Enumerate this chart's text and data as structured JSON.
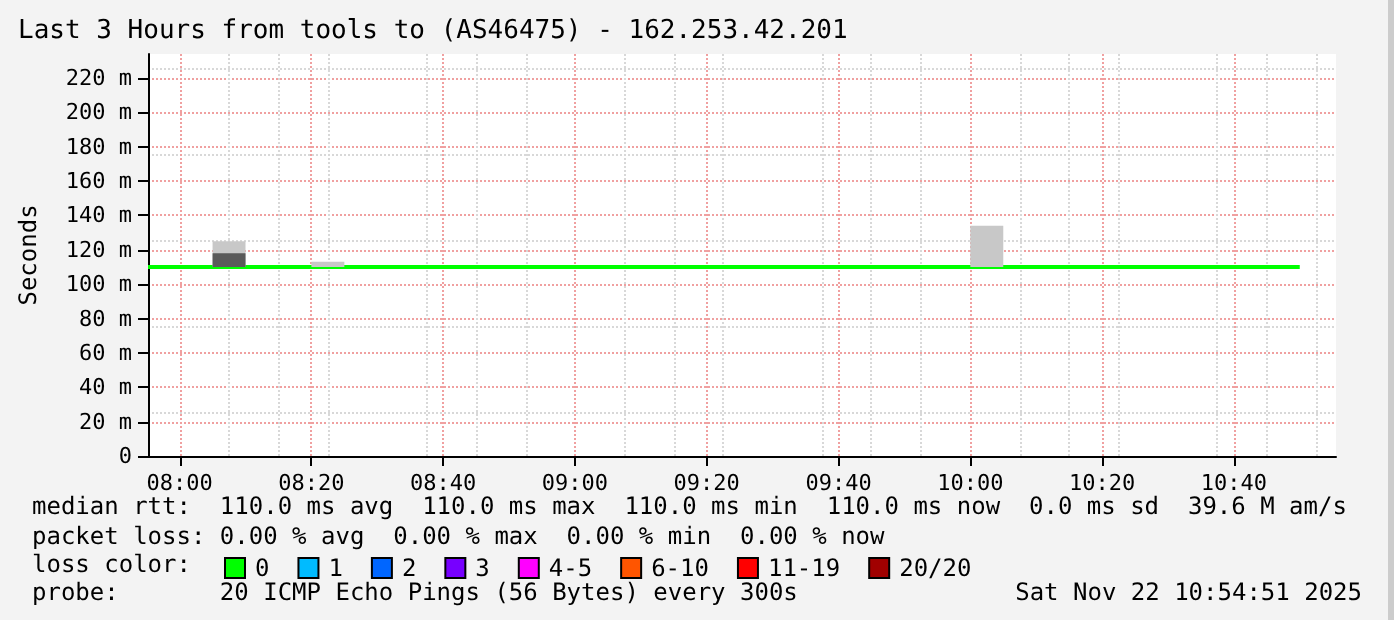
{
  "chart_data": {
    "type": "line",
    "title": "Last 3 Hours from tools to (AS46475) - 162.253.42.201",
    "ylabel": "Seconds",
    "xlim": [
      7.92,
      10.925
    ],
    "xticks": [
      {
        "value": 8,
        "label": "08:00"
      },
      {
        "value": 8.3333,
        "label": "08:20"
      },
      {
        "value": 8.6667,
        "label": "08:40"
      },
      {
        "value": 9,
        "label": "09:00"
      },
      {
        "value": 9.3333,
        "label": "09:20"
      },
      {
        "value": 9.6667,
        "label": "09:40"
      },
      {
        "value": 10,
        "label": "10:00"
      },
      {
        "value": 10.3333,
        "label": "10:20"
      },
      {
        "value": 10.6667,
        "label": "10:40"
      }
    ],
    "ylim": [
      0,
      234
    ],
    "yticks": [
      0,
      {
        "value": 20,
        "label": "20 m"
      },
      {
        "value": 40,
        "label": "40 m"
      },
      {
        "value": 60,
        "label": "60 m"
      },
      {
        "value": 80,
        "label": "80 m"
      },
      {
        "value": 100,
        "label": "100 m"
      },
      {
        "value": 120,
        "label": "120 m"
      },
      {
        "value": 140,
        "label": "140 m"
      },
      {
        "value": 160,
        "label": "160 m"
      },
      {
        "value": 180,
        "label": "180 m"
      },
      {
        "value": 200,
        "label": "200 m"
      },
      {
        "value": 220,
        "label": "220 m"
      }
    ],
    "grid": true,
    "legend": "bottom left",
    "marker": "none",
    "series": [
      {
        "type": "bar",
        "color": "#c8c8c8",
        "x": [
          8.125,
          8.375,
          10.0417
        ],
        "base": [
          110,
          110,
          110
        ],
        "values": [
          15,
          3,
          24
        ]
      },
      {
        "type": "bar",
        "color": "#5a5a5a",
        "x": [
          8.125
        ],
        "base": [
          110
        ],
        "values": [
          8
        ]
      },
      {
        "name": "0",
        "color": "#00ff00",
        "x": [
          7.92,
          10.8333
        ],
        "values": [
          110,
          110
        ]
      },
      {
        "name": "1",
        "color": "#00bbff"
      },
      {
        "name": "2",
        "color": "#0066ff"
      },
      {
        "name": "3",
        "color": "#7700ff"
      },
      {
        "name": "4-5",
        "color": "#ff00ff"
      },
      {
        "name": "6-10",
        "color": "#ff5500"
      },
      {
        "name": "11-19",
        "color": "#ff0000"
      },
      {
        "name": "20/20",
        "color": "#a10000"
      }
    ],
    "annotations": [
      "median rtt:  110.0 ms avg  110.0 ms max  110.0 ms min  110.0 ms now  0.0 ms sd  39.6 M am/s",
      "packet loss: 0.00 % avg  0.00 % max  0.00 % min  0.00 % now",
      "loss color:",
      "probe:       20 ICMP Echo Pings (56 Bytes) every 300s",
      "Sat Nov 22 10:54:51 2025"
    ]
  }
}
